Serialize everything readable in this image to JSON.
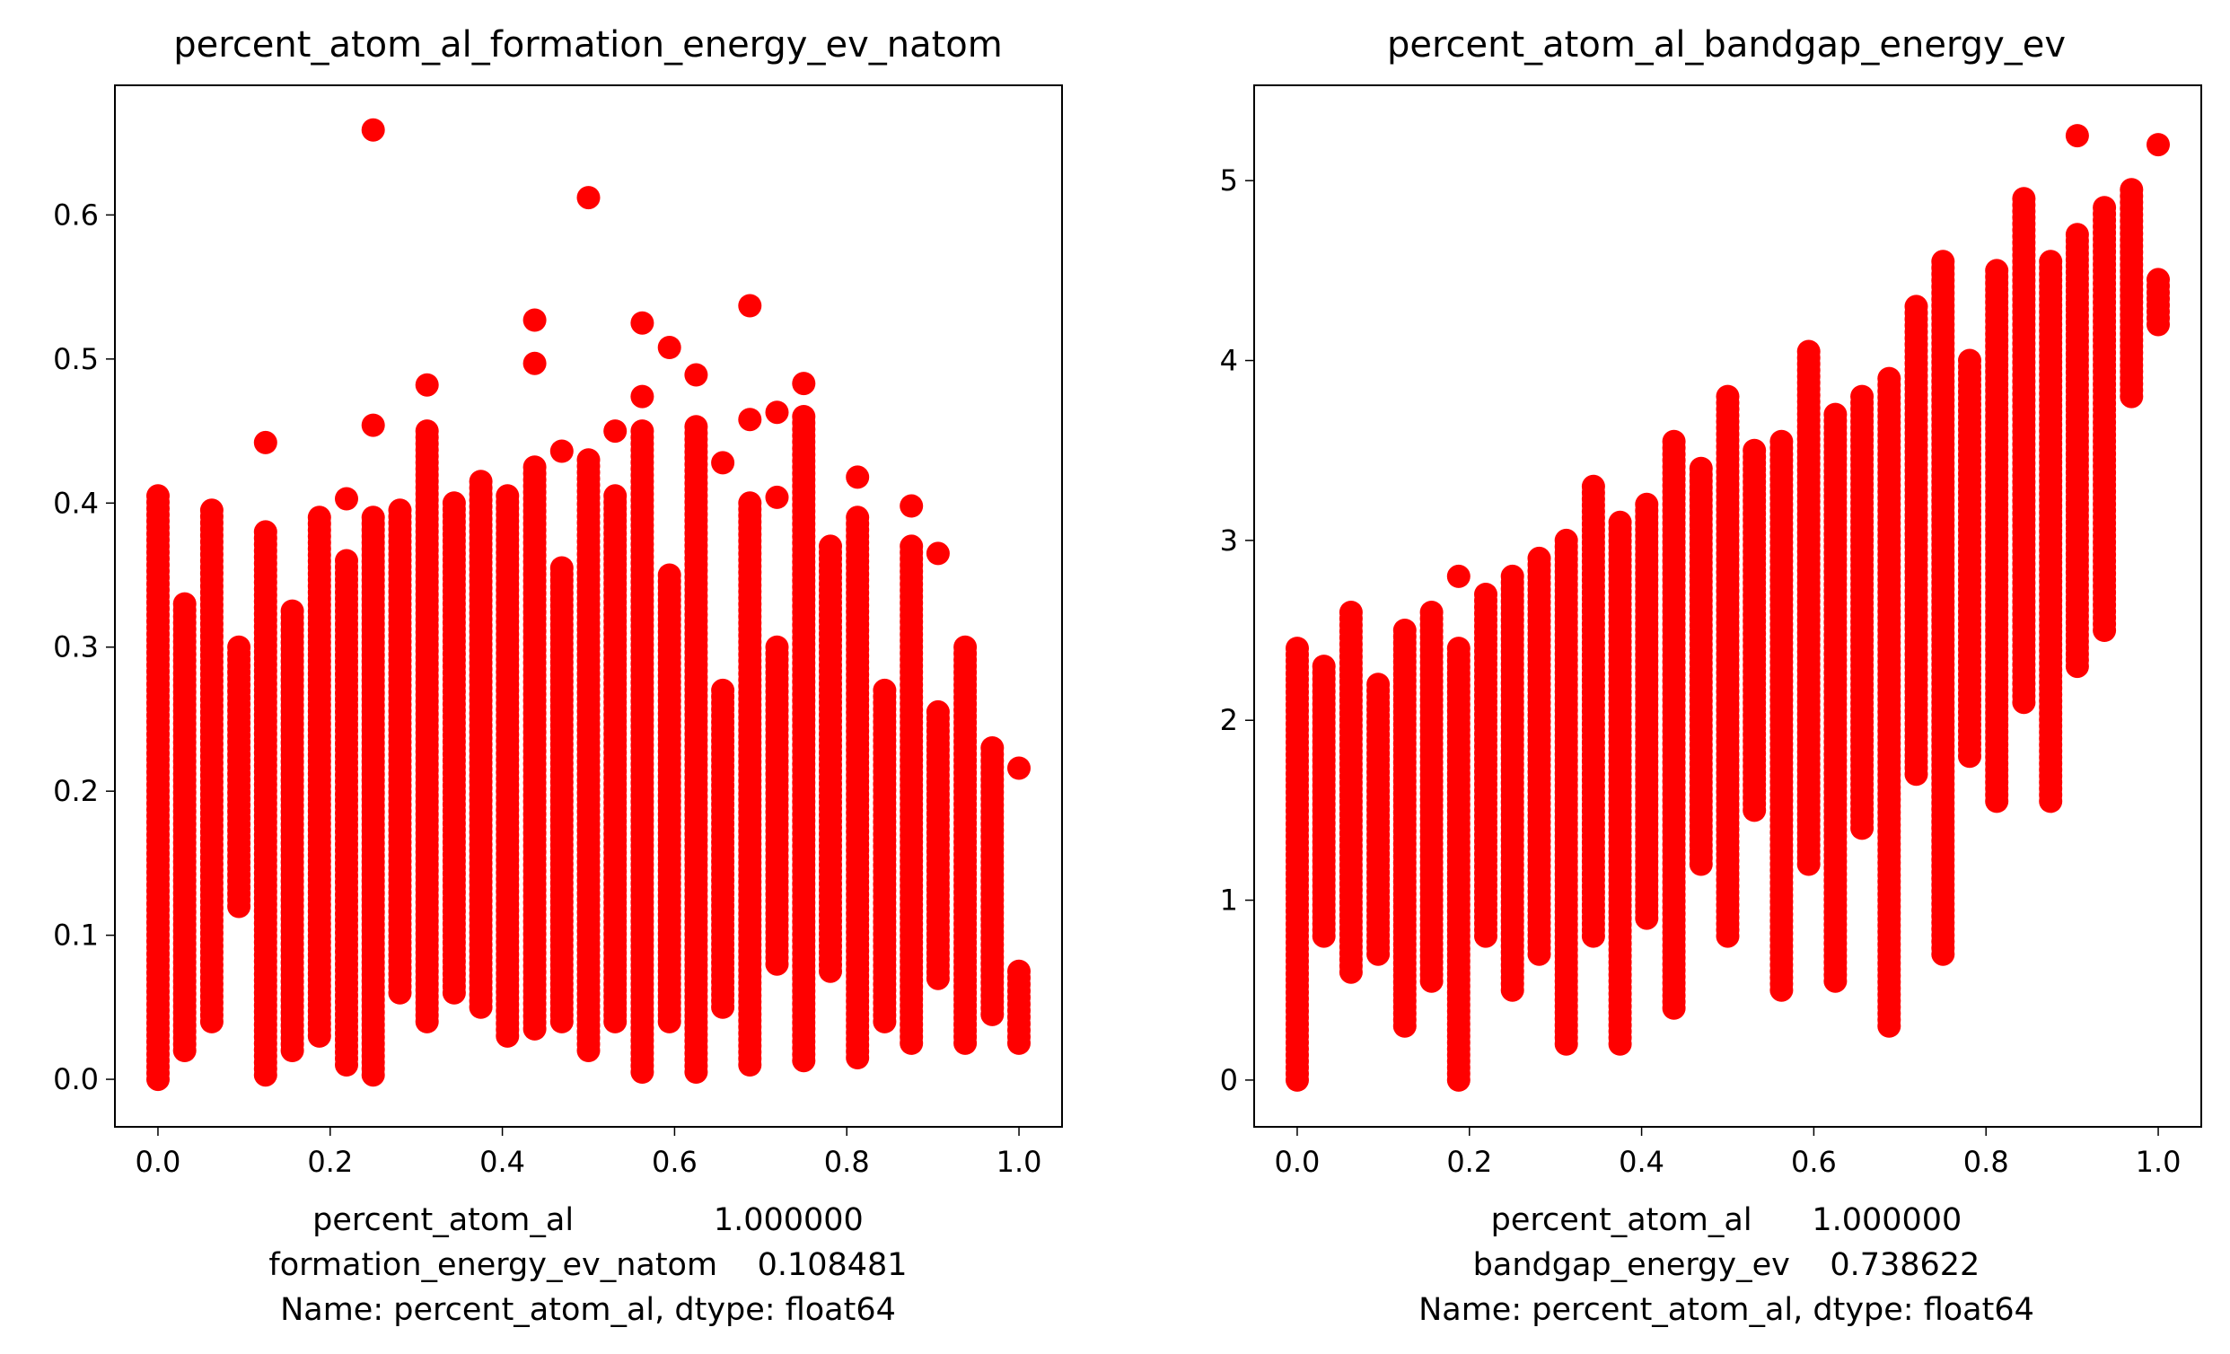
{
  "chart_data": [
    {
      "type": "scatter",
      "title": "percent_atom_al_formation_energy_ev_natom",
      "xlabel_lines": [
        "percent_atom_al              1.000000",
        "formation_energy_ev_natom    0.108481",
        "Name: percent_atom_al, dtype: float64"
      ],
      "xlim": [
        -0.05,
        1.05
      ],
      "ylim": [
        -0.033,
        0.69
      ],
      "xticks": [
        0.0,
        0.2,
        0.4,
        0.6,
        0.8,
        1.0
      ],
      "xtick_labels": [
        "0.0",
        "0.2",
        "0.4",
        "0.6",
        "0.8",
        "1.0"
      ],
      "yticks": [
        0.0,
        0.1,
        0.2,
        0.3,
        0.4,
        0.5,
        0.6
      ],
      "ytick_labels": [
        "0.0",
        "0.1",
        "0.2",
        "0.3",
        "0.4",
        "0.5",
        "0.6"
      ],
      "grid": false,
      "marker_color": "#ff0000",
      "columns": [
        {
          "x": 0.0,
          "min": 0.0,
          "max": 0.405,
          "outliers": []
        },
        {
          "x": 0.031,
          "min": 0.02,
          "max": 0.33,
          "outliers": []
        },
        {
          "x": 0.0625,
          "min": 0.04,
          "max": 0.395,
          "outliers": []
        },
        {
          "x": 0.094,
          "min": 0.12,
          "max": 0.3,
          "outliers": []
        },
        {
          "x": 0.125,
          "min": 0.003,
          "max": 0.38,
          "outliers": [
            0.442
          ]
        },
        {
          "x": 0.156,
          "min": 0.02,
          "max": 0.325,
          "outliers": []
        },
        {
          "x": 0.1875,
          "min": 0.03,
          "max": 0.39,
          "outliers": []
        },
        {
          "x": 0.219,
          "min": 0.01,
          "max": 0.36,
          "outliers": [
            0.403
          ]
        },
        {
          "x": 0.25,
          "min": 0.003,
          "max": 0.39,
          "outliers": [
            0.454,
            0.659
          ]
        },
        {
          "x": 0.281,
          "min": 0.06,
          "max": 0.395,
          "outliers": []
        },
        {
          "x": 0.3125,
          "min": 0.04,
          "max": 0.45,
          "outliers": [
            0.482
          ]
        },
        {
          "x": 0.344,
          "min": 0.06,
          "max": 0.4,
          "outliers": []
        },
        {
          "x": 0.375,
          "min": 0.05,
          "max": 0.415,
          "outliers": []
        },
        {
          "x": 0.406,
          "min": 0.03,
          "max": 0.405,
          "outliers": []
        },
        {
          "x": 0.4375,
          "min": 0.035,
          "max": 0.425,
          "outliers": [
            0.497,
            0.527
          ]
        },
        {
          "x": 0.469,
          "min": 0.04,
          "max": 0.355,
          "outliers": [
            0.436
          ]
        },
        {
          "x": 0.5,
          "min": 0.02,
          "max": 0.43,
          "outliers": [
            0.612
          ]
        },
        {
          "x": 0.531,
          "min": 0.04,
          "max": 0.405,
          "outliers": [
            0.45
          ]
        },
        {
          "x": 0.5625,
          "min": 0.005,
          "max": 0.45,
          "outliers": [
            0.474,
            0.525
          ]
        },
        {
          "x": 0.594,
          "min": 0.04,
          "max": 0.35,
          "outliers": [
            0.508
          ]
        },
        {
          "x": 0.625,
          "min": 0.005,
          "max": 0.453,
          "outliers": [
            0.489
          ]
        },
        {
          "x": 0.656,
          "min": 0.05,
          "max": 0.27,
          "outliers": [
            0.428
          ]
        },
        {
          "x": 0.6875,
          "min": 0.01,
          "max": 0.4,
          "outliers": [
            0.458,
            0.537
          ]
        },
        {
          "x": 0.719,
          "min": 0.08,
          "max": 0.3,
          "outliers": [
            0.404,
            0.463
          ]
        },
        {
          "x": 0.75,
          "min": 0.013,
          "max": 0.46,
          "outliers": [
            0.483
          ]
        },
        {
          "x": 0.781,
          "min": 0.075,
          "max": 0.37,
          "outliers": []
        },
        {
          "x": 0.8125,
          "min": 0.015,
          "max": 0.39,
          "outliers": [
            0.418
          ]
        },
        {
          "x": 0.844,
          "min": 0.04,
          "max": 0.27,
          "outliers": []
        },
        {
          "x": 0.875,
          "min": 0.025,
          "max": 0.37,
          "outliers": [
            0.398
          ]
        },
        {
          "x": 0.906,
          "min": 0.07,
          "max": 0.255,
          "outliers": [
            0.365
          ]
        },
        {
          "x": 0.9375,
          "min": 0.025,
          "max": 0.3,
          "outliers": []
        },
        {
          "x": 0.969,
          "min": 0.045,
          "max": 0.23,
          "outliers": []
        },
        {
          "x": 1.0,
          "min": 0.025,
          "max": 0.075,
          "outliers": [
            0.216
          ]
        }
      ]
    },
    {
      "type": "scatter",
      "title": "percent_atom_al_bandgap_energy_ev",
      "xlabel_lines": [
        "percent_atom_al      1.000000",
        "bandgap_energy_ev    0.738622",
        "Name: percent_atom_al, dtype: float64"
      ],
      "xlim": [
        -0.05,
        1.05
      ],
      "ylim": [
        -0.26,
        5.53
      ],
      "xticks": [
        0.0,
        0.2,
        0.4,
        0.6,
        0.8,
        1.0
      ],
      "xtick_labels": [
        "0.0",
        "0.2",
        "0.4",
        "0.6",
        "0.8",
        "1.0"
      ],
      "yticks": [
        0,
        1,
        2,
        3,
        4,
        5
      ],
      "ytick_labels": [
        "0",
        "1",
        "2",
        "3",
        "4",
        "5"
      ],
      "grid": false,
      "marker_color": "#ff0000",
      "columns": [
        {
          "x": 0.0,
          "min": 0.0,
          "max": 2.4,
          "outliers": []
        },
        {
          "x": 0.031,
          "min": 0.8,
          "max": 2.3,
          "outliers": []
        },
        {
          "x": 0.0625,
          "min": 0.6,
          "max": 2.6,
          "outliers": []
        },
        {
          "x": 0.094,
          "min": 0.7,
          "max": 2.2,
          "outliers": []
        },
        {
          "x": 0.125,
          "min": 0.3,
          "max": 2.5,
          "outliers": []
        },
        {
          "x": 0.156,
          "min": 0.55,
          "max": 2.6,
          "outliers": []
        },
        {
          "x": 0.1875,
          "min": 0.0,
          "max": 2.4,
          "outliers": [
            2.8
          ]
        },
        {
          "x": 0.219,
          "min": 0.8,
          "max": 2.7,
          "outliers": []
        },
        {
          "x": 0.25,
          "min": 0.5,
          "max": 2.8,
          "outliers": []
        },
        {
          "x": 0.281,
          "min": 0.7,
          "max": 2.9,
          "outliers": []
        },
        {
          "x": 0.3125,
          "min": 0.2,
          "max": 3.0,
          "outliers": []
        },
        {
          "x": 0.344,
          "min": 0.8,
          "max": 3.3,
          "outliers": []
        },
        {
          "x": 0.375,
          "min": 0.2,
          "max": 3.1,
          "outliers": []
        },
        {
          "x": 0.406,
          "min": 0.9,
          "max": 3.2,
          "outliers": []
        },
        {
          "x": 0.4375,
          "min": 0.4,
          "max": 3.55,
          "outliers": []
        },
        {
          "x": 0.469,
          "min": 1.2,
          "max": 3.4,
          "outliers": []
        },
        {
          "x": 0.5,
          "min": 0.8,
          "max": 3.8,
          "outliers": []
        },
        {
          "x": 0.531,
          "min": 1.5,
          "max": 3.5,
          "outliers": []
        },
        {
          "x": 0.5625,
          "min": 0.5,
          "max": 3.55,
          "outliers": []
        },
        {
          "x": 0.594,
          "min": 1.2,
          "max": 4.05,
          "outliers": []
        },
        {
          "x": 0.625,
          "min": 0.55,
          "max": 3.7,
          "outliers": []
        },
        {
          "x": 0.656,
          "min": 1.4,
          "max": 3.8,
          "outliers": []
        },
        {
          "x": 0.6875,
          "min": 0.3,
          "max": 3.9,
          "outliers": []
        },
        {
          "x": 0.719,
          "min": 1.7,
          "max": 4.3,
          "outliers": []
        },
        {
          "x": 0.75,
          "min": 0.7,
          "max": 4.55,
          "outliers": []
        },
        {
          "x": 0.781,
          "min": 1.8,
          "max": 4.0,
          "outliers": []
        },
        {
          "x": 0.8125,
          "min": 1.55,
          "max": 4.5,
          "outliers": []
        },
        {
          "x": 0.844,
          "min": 2.1,
          "max": 4.9,
          "outliers": []
        },
        {
          "x": 0.875,
          "min": 1.55,
          "max": 4.55,
          "outliers": []
        },
        {
          "x": 0.906,
          "min": 2.3,
          "max": 4.7,
          "outliers": [
            5.25
          ]
        },
        {
          "x": 0.9375,
          "min": 2.5,
          "max": 4.85,
          "outliers": []
        },
        {
          "x": 0.969,
          "min": 3.8,
          "max": 4.95,
          "outliers": []
        },
        {
          "x": 1.0,
          "min": 4.2,
          "max": 4.45,
          "outliers": [
            5.2
          ]
        }
      ]
    }
  ]
}
